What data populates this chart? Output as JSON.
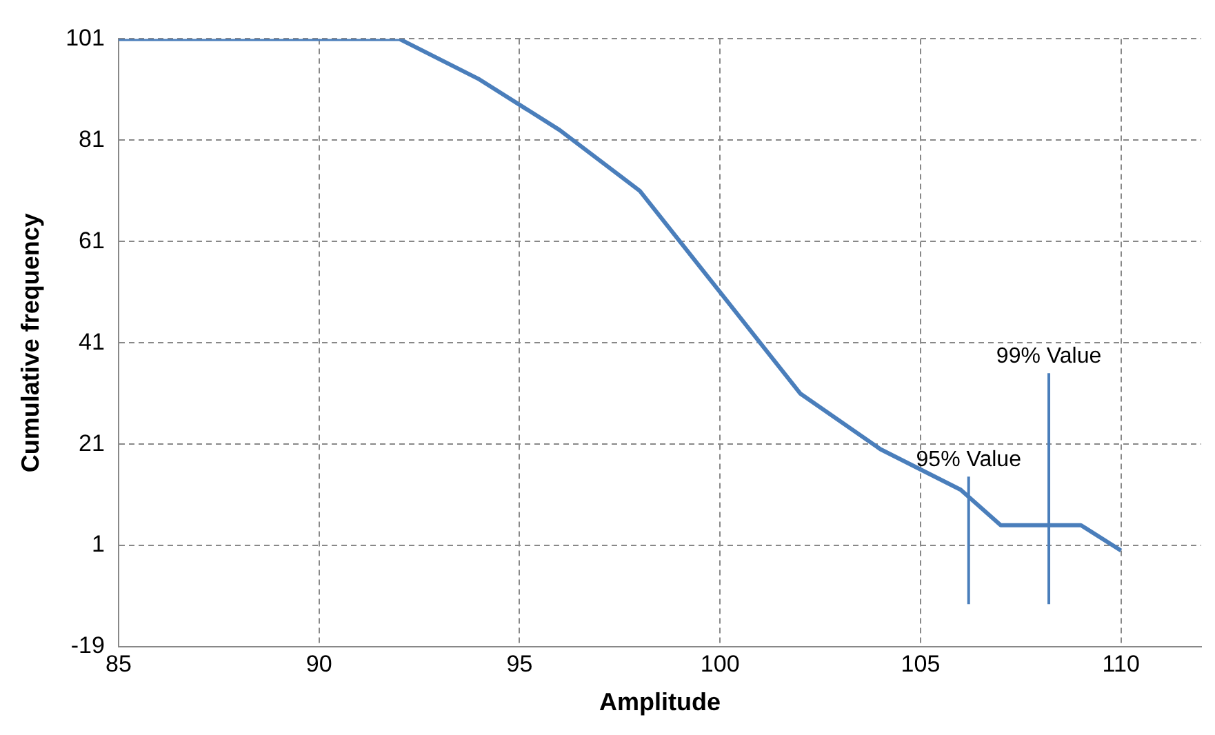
{
  "chart_data": {
    "type": "line",
    "xlabel": "Amplitude",
    "ylabel": "Cumulative frequency",
    "x": [
      85,
      92,
      94,
      96,
      98,
      100,
      102,
      104,
      106,
      107,
      109,
      110
    ],
    "series": [
      {
        "color": "#4a7ebb",
        "values": [
          101,
          101,
          93,
          83,
          71,
          51,
          31,
          20,
          12,
          5,
          5,
          0
        ]
      }
    ],
    "xlim": [
      85,
      112
    ],
    "xticks": [
      85,
      90,
      95,
      100,
      105,
      110
    ],
    "ylim": [
      -19,
      101
    ],
    "yticks": [
      -19,
      1,
      21,
      41,
      61,
      81,
      101
    ],
    "grid": true,
    "legend": false,
    "marker": "none",
    "line_style": "solid",
    "ref_lines": [
      {
        "axis": "x",
        "value": 106.2,
        "label": "95% Value",
        "color": "#4a7ebb"
      },
      {
        "axis": "x",
        "value": 108.2,
        "label": "99% Value",
        "color": "#4a7ebb"
      }
    ]
  }
}
